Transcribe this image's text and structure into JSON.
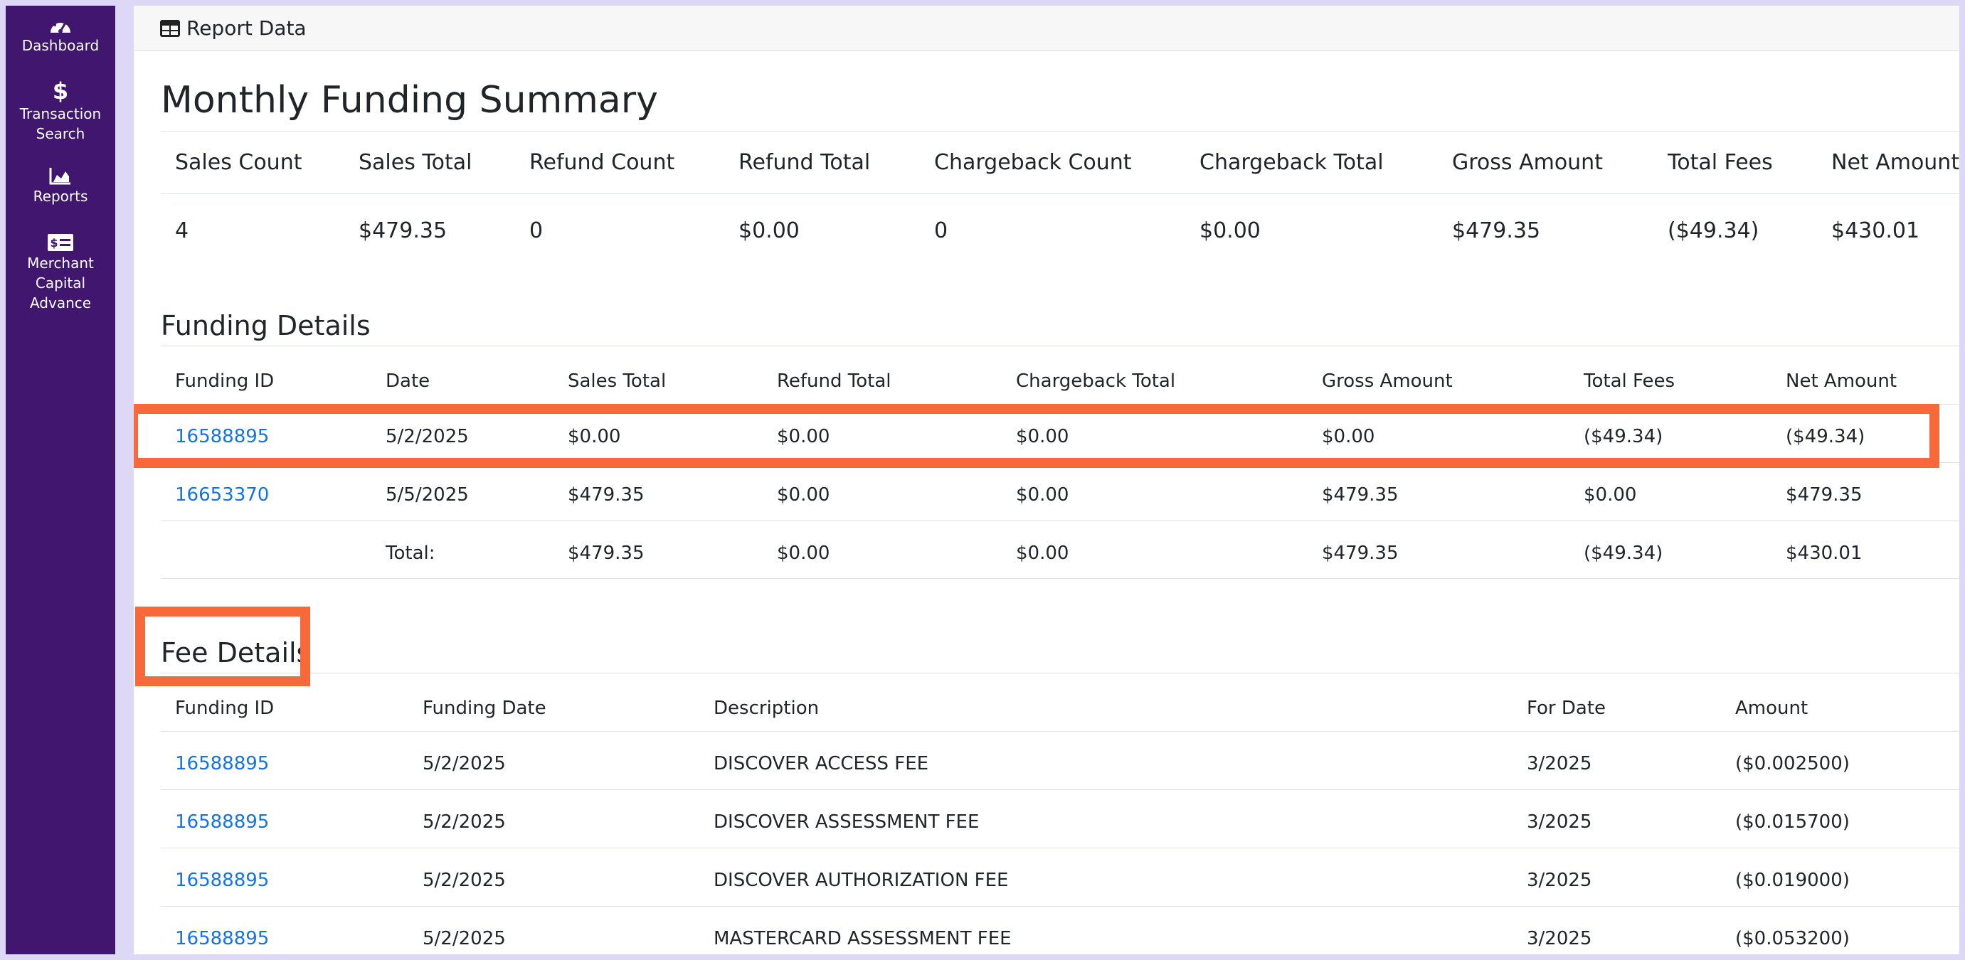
{
  "sidebar": {
    "items": [
      {
        "label": "Dashboard",
        "icon": "dashboard-gauge-icon"
      },
      {
        "label": "Transaction Search",
        "icon": "dollar-icon"
      },
      {
        "label": "Reports",
        "icon": "area-chart-icon"
      },
      {
        "label": "Merchant Capital Advance",
        "icon": "money-check-icon"
      }
    ]
  },
  "card_header": {
    "icon": "table-icon",
    "title": "Report Data"
  },
  "summary": {
    "title": "Monthly Funding Summary",
    "headers": [
      "Sales Count",
      "Sales Total",
      "Refund Count",
      "Refund Total",
      "Chargeback Count",
      "Chargeback Total",
      "Gross Amount",
      "Total Fees",
      "Net Amount"
    ],
    "values": [
      "4",
      "$479.35",
      "0",
      "$0.00",
      "0",
      "$0.00",
      "$479.35",
      "($49.34)",
      "$430.01"
    ]
  },
  "funding_details": {
    "title": "Funding Details",
    "headers": [
      "Funding ID",
      "Date",
      "Sales Total",
      "Refund Total",
      "Chargeback Total",
      "Gross Amount",
      "Total Fees",
      "Net Amount"
    ],
    "rows": [
      [
        "16588895",
        "5/2/2025",
        "$0.00",
        "$0.00",
        "$0.00",
        "$0.00",
        "($49.34)",
        "($49.34)"
      ],
      [
        "16653370",
        "5/5/2025",
        "$479.35",
        "$0.00",
        "$0.00",
        "$479.35",
        "$0.00",
        "$479.35"
      ]
    ],
    "total_row": [
      "",
      "Total:",
      "$479.35",
      "$0.00",
      "$0.00",
      "$479.35",
      "($49.34)",
      "$430.01"
    ]
  },
  "fee_details": {
    "title": "Fee Details",
    "headers": [
      "Funding ID",
      "Funding Date",
      "Description",
      "For Date",
      "Amount"
    ],
    "rows": [
      [
        "16588895",
        "5/2/2025",
        "DISCOVER ACCESS FEE",
        "3/2025",
        "($0.002500)"
      ],
      [
        "16588895",
        "5/2/2025",
        "DISCOVER ASSESSMENT FEE",
        "3/2025",
        "($0.015700)"
      ],
      [
        "16588895",
        "5/2/2025",
        "DISCOVER AUTHORIZATION FEE",
        "3/2025",
        "($0.019000)"
      ],
      [
        "16588895",
        "5/2/2025",
        "MASTERCARD ASSESSMENT FEE",
        "3/2025",
        "($0.053200)"
      ]
    ]
  },
  "colors": {
    "sidebar": "#41166f",
    "link": "#1473e6",
    "highlight": "#f7693b"
  }
}
